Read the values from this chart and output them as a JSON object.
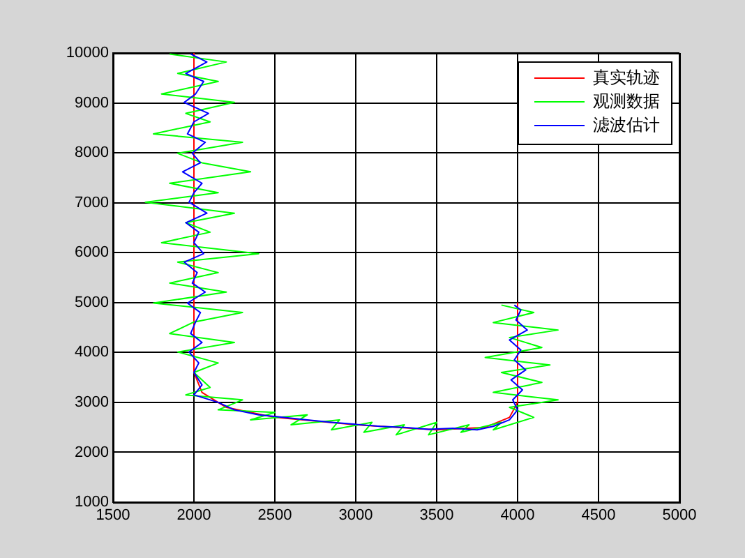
{
  "chart_data": {
    "type": "line",
    "xlim": [
      1500,
      5000
    ],
    "xticks": [
      1500,
      2000,
      2500,
      3000,
      3500,
      4000,
      4500,
      5000
    ],
    "ylim": [
      1000,
      10000
    ],
    "yticks": [
      1000,
      2000,
      3000,
      4000,
      5000,
      6000,
      7000,
      8000,
      9000,
      10000
    ],
    "grid": true,
    "legend": "top right",
    "marker": "none",
    "line_style": "solid",
    "series": [
      {
        "name": "真实轨迹",
        "color": "#ff0000",
        "x": [
          2000,
          2000,
          2050,
          2200,
          2500,
          3000,
          3500,
          3800,
          3950,
          4000,
          4000
        ],
        "values": [
          10000,
          3600,
          3200,
          2900,
          2700,
          2550,
          2450,
          2500,
          2700,
          3000,
          5000
        ]
      },
      {
        "name": "观测数据",
        "color": "#00ff00",
        "x": [
          1850,
          2200,
          1900,
          2150,
          1800,
          2250,
          1950,
          2100,
          1750,
          2300,
          1900,
          2050,
          2350,
          1850,
          2150,
          1700,
          2250,
          1950,
          2100,
          1800,
          2400,
          1900,
          2150,
          1850,
          2200,
          1750,
          2300,
          2000,
          1850,
          2250,
          1900,
          2150,
          2000,
          2100,
          1950,
          2300,
          2150,
          2500,
          2350,
          2700,
          2600,
          2900,
          2850,
          3100,
          3050,
          3300,
          3250,
          3500,
          3450,
          3700,
          3650,
          3900,
          3850,
          4100,
          3950,
          4250,
          3850,
          4150,
          3900,
          4200,
          3800,
          4150,
          3950,
          4250,
          3850,
          4100,
          3900
        ],
        "values": [
          9980,
          9820,
          9590,
          9430,
          9180,
          9010,
          8790,
          8620,
          8380,
          8210,
          7990,
          7800,
          7620,
          7390,
          7200,
          7010,
          6790,
          6600,
          6410,
          6200,
          5980,
          5810,
          5600,
          5390,
          5210,
          4990,
          4800,
          4610,
          4380,
          4200,
          4010,
          3790,
          3600,
          3300,
          3150,
          3050,
          2850,
          2800,
          2650,
          2750,
          2550,
          2650,
          2450,
          2600,
          2400,
          2550,
          2350,
          2600,
          2350,
          2550,
          2400,
          2600,
          2450,
          2700,
          2900,
          3050,
          3200,
          3400,
          3600,
          3750,
          3900,
          4100,
          4300,
          4450,
          4600,
          4800,
          4950
        ]
      },
      {
        "name": "滤波估计",
        "color": "#0000ff",
        "x": [
          1980,
          2080,
          1950,
          2060,
          2010,
          1940,
          2090,
          2000,
          1960,
          2070,
          1990,
          2040,
          1930,
          2050,
          2000,
          1970,
          2080,
          1950,
          2030,
          2000,
          2060,
          1940,
          2020,
          1990,
          2070,
          1960,
          2040,
          2010,
          1980,
          2050,
          1970,
          2030,
          2000,
          2050,
          2000,
          2150,
          2250,
          2400,
          2550,
          2700,
          2850,
          3000,
          3150,
          3300,
          3450,
          3600,
          3750,
          3850,
          3950,
          4000,
          3970,
          4030,
          3960,
          4050,
          3980,
          4020,
          3950,
          4060,
          3990,
          4020,
          3980
        ],
        "values": [
          9980,
          9820,
          9590,
          9430,
          9180,
          9010,
          8790,
          8620,
          8380,
          8210,
          7990,
          7800,
          7620,
          7390,
          7200,
          7010,
          6790,
          6600,
          6410,
          6200,
          5980,
          5810,
          5600,
          5390,
          5210,
          4990,
          4800,
          4610,
          4380,
          4200,
          4010,
          3790,
          3600,
          3350,
          3150,
          3000,
          2850,
          2750,
          2700,
          2650,
          2600,
          2560,
          2520,
          2500,
          2460,
          2480,
          2450,
          2520,
          2650,
          2850,
          3050,
          3250,
          3450,
          3650,
          3850,
          4050,
          4250,
          4450,
          4650,
          4850,
          4950
        ]
      }
    ]
  }
}
